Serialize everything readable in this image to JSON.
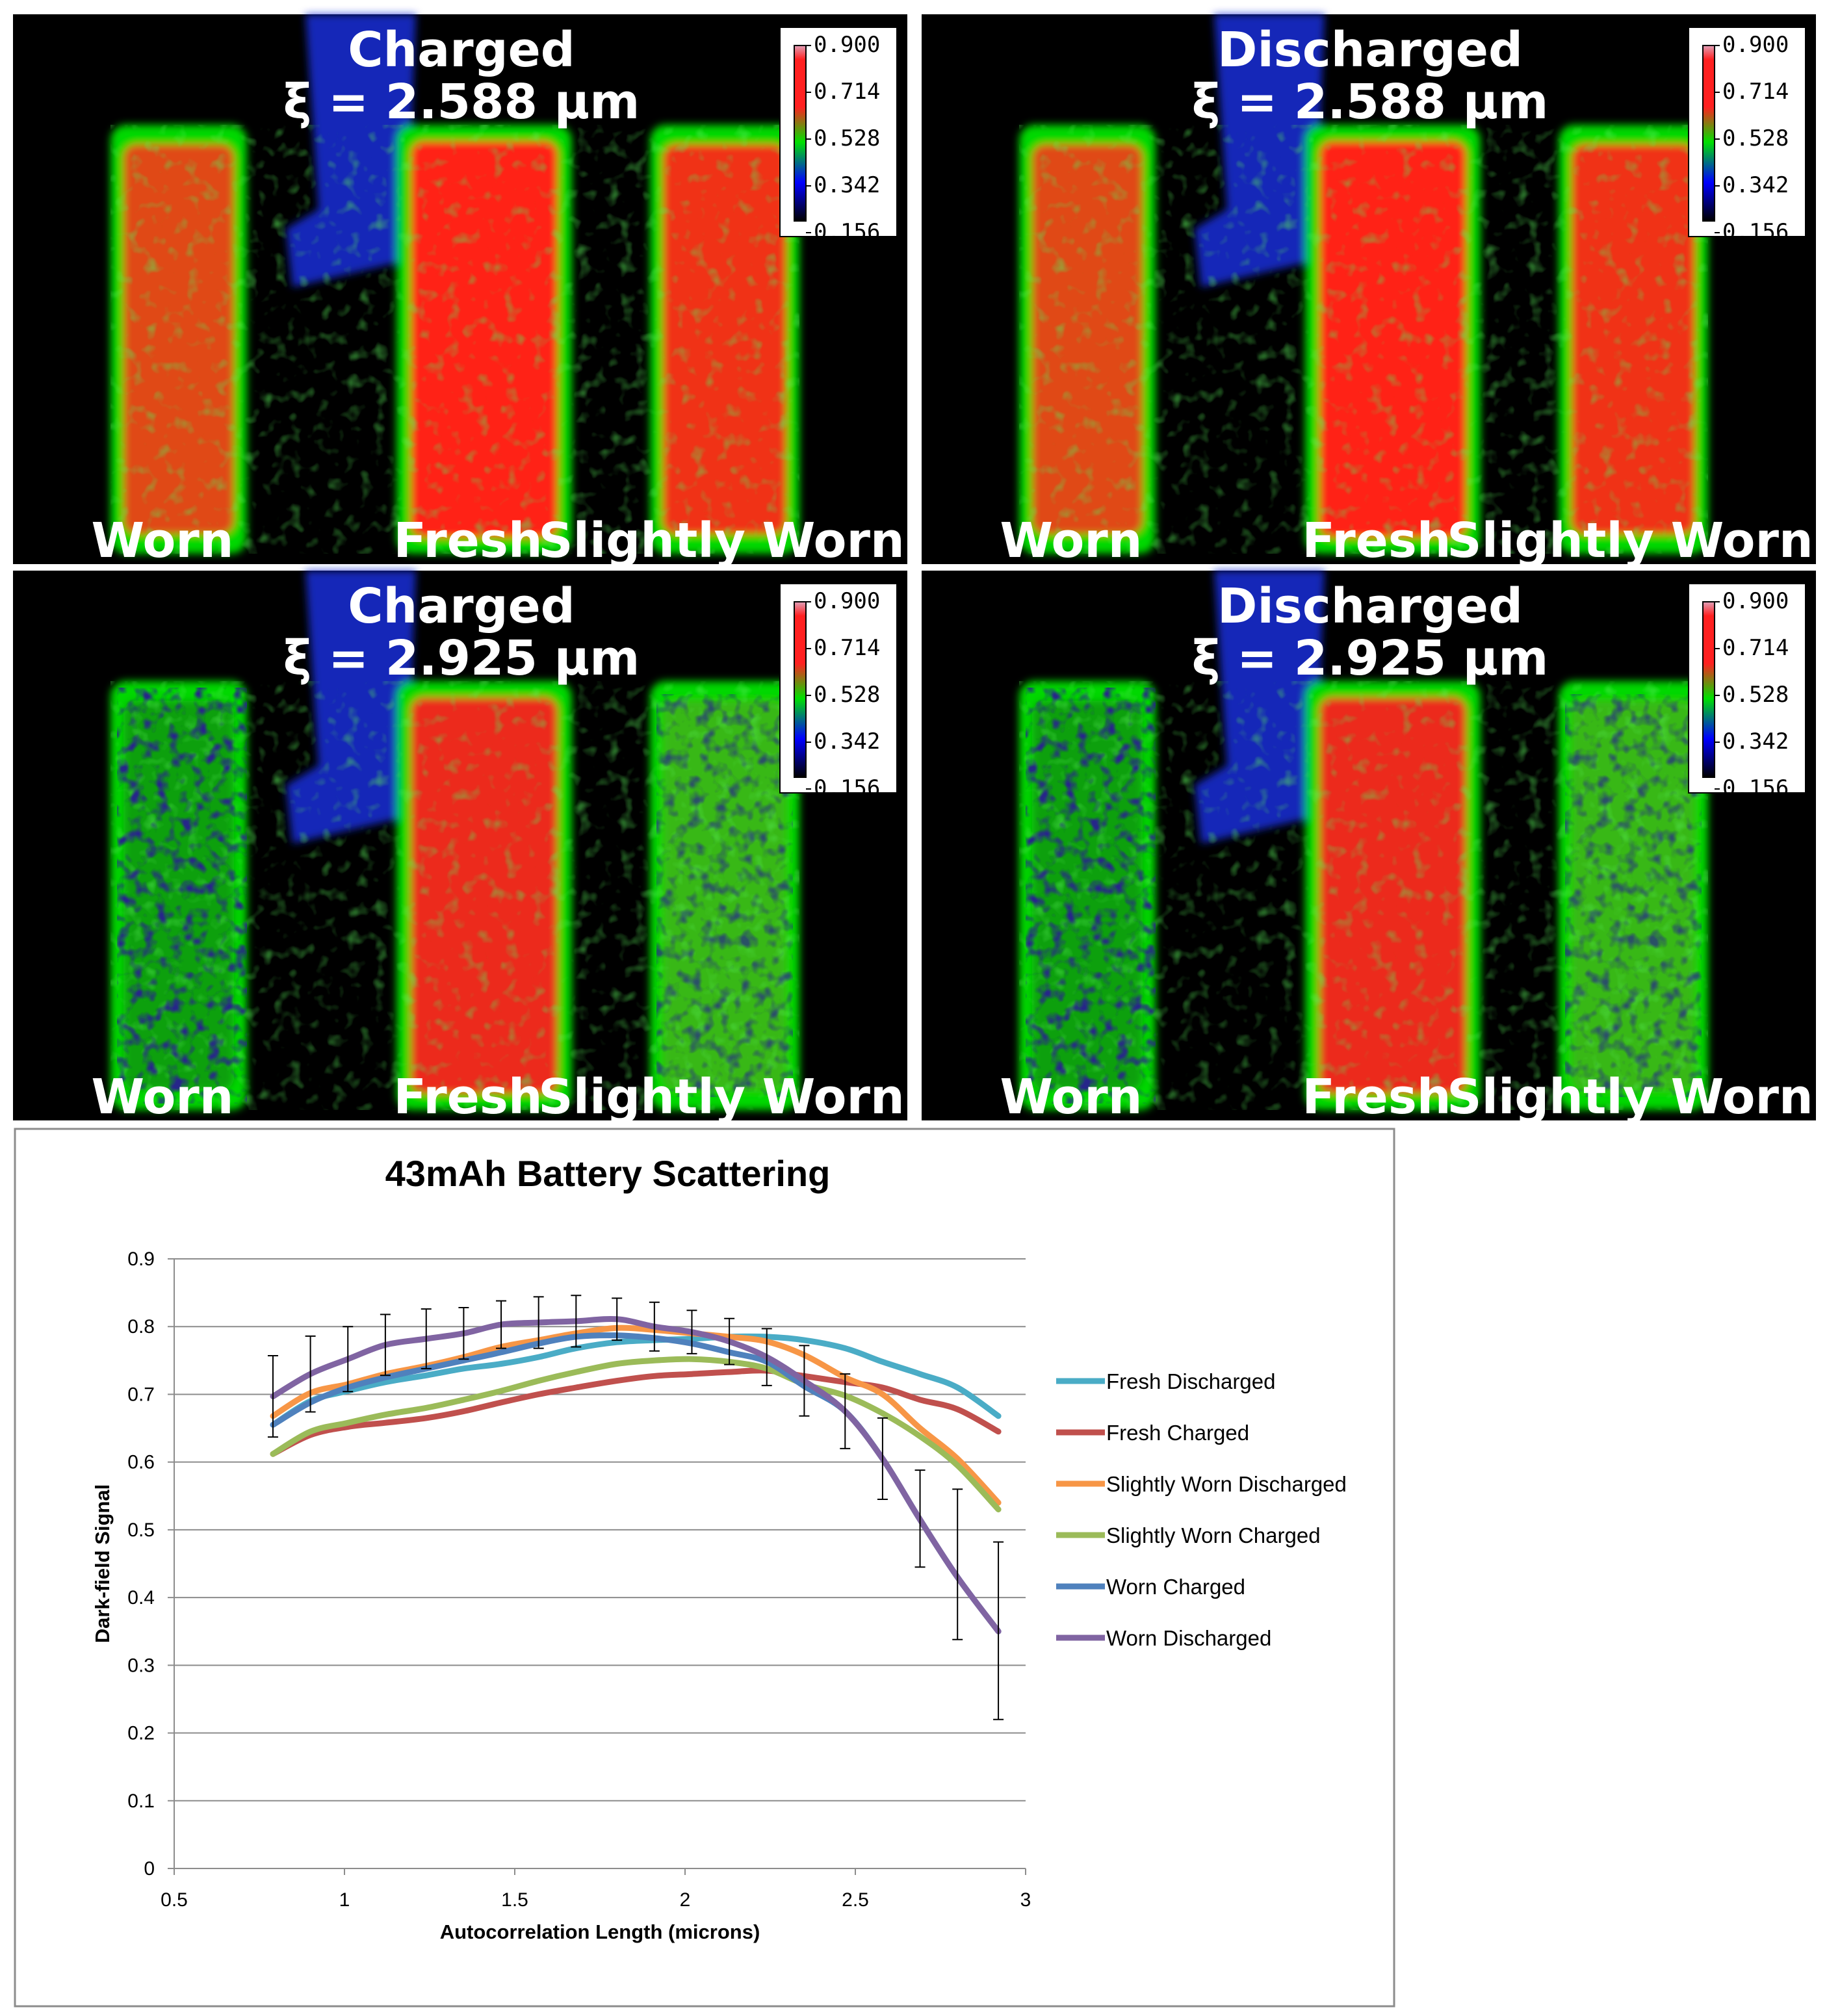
{
  "panels": [
    {
      "title": "Charged",
      "xi": "ξ = 2.588 μm",
      "labels": [
        "Worn",
        "Fresh",
        "Slightly Worn"
      ],
      "colorbar_ticks": [
        "0.900",
        "0.714",
        "0.528",
        "0.342",
        "0.156"
      ],
      "pattern": "solid"
    },
    {
      "title": "Discharged",
      "xi": "ξ = 2.588 μm",
      "labels": [
        "Worn",
        "Fresh",
        "Slightly Worn"
      ],
      "colorbar_ticks": [
        "0.900",
        "0.714",
        "0.528",
        "0.342",
        "0.156"
      ],
      "pattern": "solid"
    },
    {
      "title": "Charged",
      "xi": "ξ = 2.925 μm",
      "labels": [
        "Worn",
        "Fresh",
        "Slightly Worn"
      ],
      "colorbar_ticks": [
        "0.900",
        "0.714",
        "0.528",
        "0.342",
        "0.156"
      ],
      "pattern": "degraded"
    },
    {
      "title": "Discharged",
      "xi": "ξ = 2.925 μm",
      "labels": [
        "Worn",
        "Fresh",
        "Slightly Worn"
      ],
      "colorbar_ticks": [
        "0.900",
        "0.714",
        "0.528",
        "0.342",
        "0.156"
      ],
      "pattern": "degraded"
    }
  ],
  "colorbar_colors": [
    "#e0a0b8",
    "#ff2020",
    "#00e000",
    "#0000ff",
    "#000000"
  ],
  "chart_data": {
    "type": "line",
    "title": "43mAh Battery Scattering",
    "xlabel": "Autocorrelation Length (microns)",
    "ylabel": "Dark-field Signal",
    "xlim": [
      0.5,
      3
    ],
    "ylim": [
      0,
      0.9
    ],
    "xticks": [
      "0.5",
      "1",
      "1.5",
      "2",
      "2.5",
      "3"
    ],
    "yticks": [
      "0",
      "0.1",
      "0.2",
      "0.3",
      "0.4",
      "0.5",
      "0.6",
      "0.7",
      "0.8",
      "0.9"
    ],
    "grid": true,
    "legend_position": "right",
    "x": [
      0.79,
      0.9,
      1.01,
      1.12,
      1.24,
      1.35,
      1.46,
      1.57,
      1.68,
      1.8,
      1.91,
      2.02,
      2.13,
      2.24,
      2.35,
      2.47,
      2.58,
      2.69,
      2.8,
      2.92
    ],
    "series": [
      {
        "name": "Fresh Discharged",
        "color": "#4aacc6",
        "values": [
          0.655,
          0.69,
          0.705,
          0.718,
          0.728,
          0.738,
          0.745,
          0.755,
          0.768,
          0.777,
          0.78,
          0.782,
          0.785,
          0.785,
          0.78,
          0.768,
          0.748,
          0.73,
          0.71,
          0.668
        ]
      },
      {
        "name": "Fresh Charged",
        "color": "#c0504d",
        "values": [
          0.612,
          0.64,
          0.652,
          0.658,
          0.665,
          0.675,
          0.688,
          0.7,
          0.71,
          0.72,
          0.727,
          0.73,
          0.733,
          0.735,
          0.727,
          0.718,
          0.71,
          0.692,
          0.678,
          0.645
        ]
      },
      {
        "name": "Slightly Worn Discharged",
        "color": "#f79646",
        "values": [
          0.668,
          0.702,
          0.715,
          0.73,
          0.742,
          0.755,
          0.77,
          0.78,
          0.79,
          0.798,
          0.795,
          0.79,
          0.785,
          0.778,
          0.758,
          0.725,
          0.7,
          0.65,
          0.605,
          0.54
        ]
      },
      {
        "name": "Slightly Worn Charged",
        "color": "#9bbb59",
        "values": [
          0.612,
          0.645,
          0.658,
          0.67,
          0.68,
          0.692,
          0.705,
          0.72,
          0.733,
          0.745,
          0.75,
          0.752,
          0.748,
          0.738,
          0.715,
          0.698,
          0.672,
          0.638,
          0.595,
          0.53
        ]
      },
      {
        "name": "Worn Charged",
        "color": "#4f81bd",
        "values": [
          0.655,
          0.688,
          0.71,
          0.725,
          0.738,
          0.75,
          0.762,
          0.775,
          0.785,
          0.787,
          0.783,
          0.775,
          0.762,
          0.748,
          0.712,
          0.675,
          0.605,
          0.515,
          0.43,
          0.35
        ]
      },
      {
        "name": "Worn Discharged",
        "color": "#8064a2",
        "values": [
          0.697,
          0.73,
          0.752,
          0.773,
          0.782,
          0.79,
          0.803,
          0.806,
          0.808,
          0.811,
          0.8,
          0.792,
          0.778,
          0.755,
          0.72,
          0.675,
          0.605,
          0.515,
          0.43,
          0.35
        ]
      }
    ],
    "error_bars": {
      "series": "Worn Discharged",
      "upper": [
        0.757,
        0.786,
        0.8,
        0.818,
        0.826,
        0.828,
        0.838,
        0.844,
        0.846,
        0.842,
        0.836,
        0.824,
        0.812,
        0.797,
        0.772,
        0.73,
        0.665,
        0.588,
        0.56,
        0.482
      ],
      "lower": [
        0.637,
        0.674,
        0.704,
        0.728,
        0.738,
        0.752,
        0.768,
        0.768,
        0.77,
        0.78,
        0.764,
        0.76,
        0.744,
        0.713,
        0.668,
        0.62,
        0.545,
        0.445,
        0.338,
        0.22
      ]
    }
  }
}
